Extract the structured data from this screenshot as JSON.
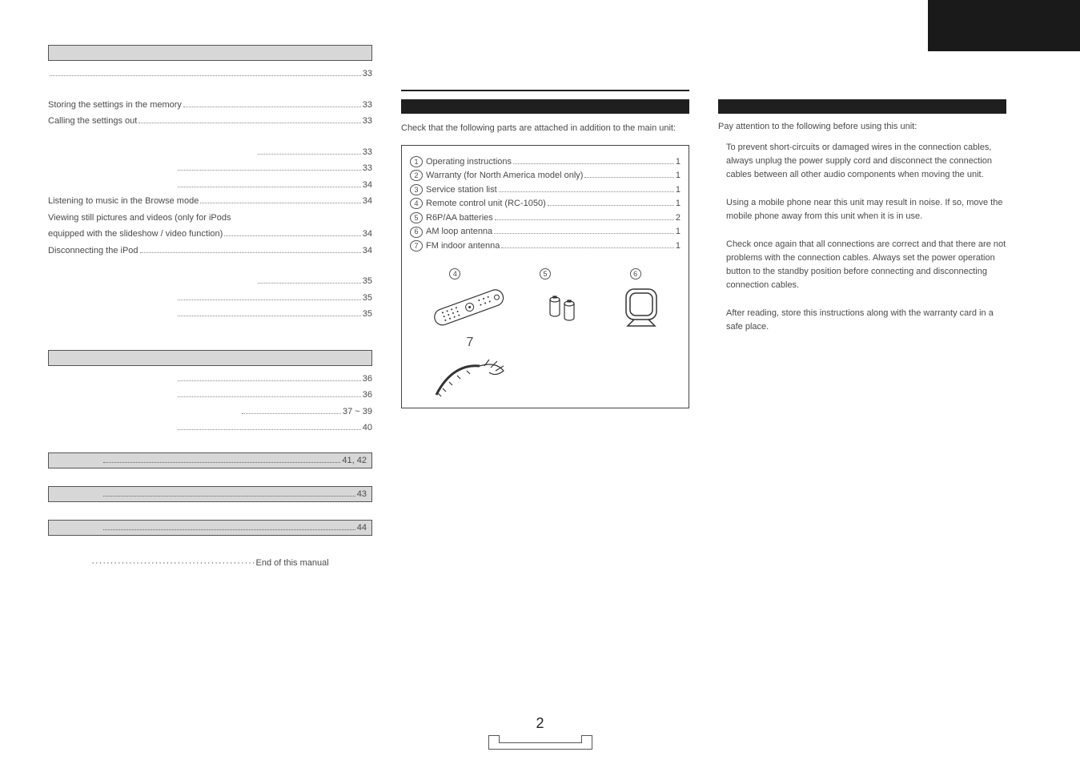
{
  "toc": {
    "sections": [
      {
        "lines": [
          {
            "label": "",
            "page": "33",
            "indent": 0
          }
        ]
      },
      {
        "lines": [
          {
            "label": "Storing the settings in the memory",
            "page": "33",
            "indent": 0
          },
          {
            "label": "Calling the settings out",
            "page": "33",
            "indent": 0
          }
        ]
      },
      {
        "lines": [
          {
            "label": "",
            "page": "33",
            "indent": 2
          },
          {
            "label": "",
            "page": "33",
            "indent": 1
          },
          {
            "label": "",
            "page": "34",
            "indent": 1
          },
          {
            "label": "Listening to music in the Browse mode",
            "page": "34",
            "indent": 0
          },
          {
            "label": "Viewing still pictures and videos (only for iPods",
            "page": "",
            "indent": 0,
            "nodots": true
          },
          {
            "label": "equipped with the slideshow / video function)",
            "page": "34",
            "indent": 0
          },
          {
            "label": "Disconnecting the iPod",
            "page": "34",
            "indent": 0
          }
        ]
      },
      {
        "lines": [
          {
            "label": "",
            "page": "35",
            "indent": 2
          },
          {
            "label": "",
            "page": "35",
            "indent": 1
          },
          {
            "label": "",
            "page": "35",
            "indent": 1
          }
        ]
      }
    ],
    "gap_section": {
      "lines": [
        {
          "label": "",
          "page": "36",
          "indent": 1
        },
        {
          "label": "",
          "page": "36",
          "indent": 1
        },
        {
          "label": "",
          "page": "37 ~ 39",
          "indent": 2
        },
        {
          "label": "",
          "page": "40",
          "indent": 1
        }
      ]
    },
    "tail_sections": [
      {
        "page": "41, 42"
      },
      {
        "page": "43"
      },
      {
        "page": "44"
      }
    ],
    "end_label": "End of this manual"
  },
  "mid": {
    "intro": "Check that the following parts are attached in addition to the main unit:",
    "items": [
      {
        "n": "1",
        "label": "Operating instructions",
        "qty": "1"
      },
      {
        "n": "2",
        "label": "Warranty (for North America model only)",
        "qty": "1"
      },
      {
        "n": "3",
        "label": "Service station list",
        "qty": "1"
      },
      {
        "n": "4",
        "label": "Remote control unit (RC-1050)",
        "qty": "1"
      },
      {
        "n": "5",
        "label": "R6P/AA batteries",
        "qty": "2"
      },
      {
        "n": "6",
        "label": "AM loop antenna",
        "qty": "1"
      },
      {
        "n": "7",
        "label": "FM indoor antenna",
        "qty": "1"
      }
    ],
    "illus_tags": {
      "a": "4",
      "b": "5",
      "c": "6",
      "d": "7"
    }
  },
  "right": {
    "intro": "Pay attention to the following before using this unit:",
    "paras": [
      "To prevent short-circuits or damaged wires in the connection cables, always unplug the power supply cord and disconnect the connection cables between all other audio components when moving the unit.",
      "Using a mobile phone near this unit may result in noise. If so, move the mobile phone away from this unit when it is in use.",
      "Check once again that all connections are correct and that there are not problems with the connection cables. Always set the power operation button to the standby position before connecting and disconnecting connection cables.",
      "After reading, store this instructions along with the warranty card in a safe place."
    ]
  },
  "footer": {
    "page": "2"
  }
}
